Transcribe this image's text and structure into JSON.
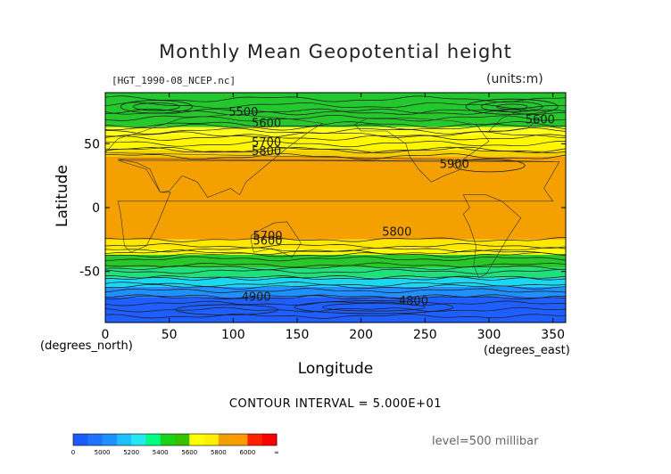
{
  "page": {
    "title": "Monthly Mean Geopotential height",
    "file": "[HGT_1990-08_NCEP.nc]",
    "units": "(units:m)",
    "ylabel": "Latitude",
    "xlabel": "Longitude",
    "xunit_left": "(degrees_north)",
    "xunit_right": "(degrees_east)",
    "interval": "CONTOUR INTERVAL = 5.000E+01",
    "level": "level=500 millibar"
  },
  "chart_data": {
    "type": "heatmap",
    "title": "Monthly Mean Geopotential height",
    "xlabel": "Longitude",
    "ylabel": "Latitude",
    "xlim": [
      0,
      360
    ],
    "ylim": [
      -90,
      90
    ],
    "xticks": [
      0,
      50,
      100,
      150,
      200,
      250,
      300,
      350
    ],
    "yticks": [
      50,
      0,
      -50
    ],
    "contour_interval": 50,
    "colorbar": {
      "tick_labels": [
        "0",
        "5000",
        "5200",
        "5400",
        "5600",
        "5800",
        "6000",
        "∞"
      ],
      "colors": [
        "#1e5bff",
        "#1f73ff",
        "#1e90ff",
        "#1fbfff",
        "#25e6f2",
        "#00ff80",
        "#19d219",
        "#36c000",
        "#ffff00",
        "#ffef00",
        "#f0a000",
        "#ff9a00",
        "#ff2200",
        "#ff0000"
      ]
    },
    "bands": [
      {
        "lat_top": 90,
        "lat_bottom": 75,
        "color": "#22c82e",
        "label": "5500"
      },
      {
        "lat_top": 75,
        "lat_bottom": 63,
        "color": "#27c82b"
      },
      {
        "lat_top": 63,
        "lat_bottom": 57,
        "color": "#ffff1a",
        "label": "5600"
      },
      {
        "lat_top": 57,
        "lat_bottom": 45,
        "color": "#fff700",
        "label": "5700"
      },
      {
        "lat_top": 45,
        "lat_bottom": 40,
        "color": "#f5d000",
        "label": "5800"
      },
      {
        "lat_top": 40,
        "lat_bottom": -25,
        "color": "#f4a000",
        "label": "5900"
      },
      {
        "lat_top": -25,
        "lat_bottom": -33,
        "color": "#ffe800",
        "label": "5800"
      },
      {
        "lat_top": -33,
        "lat_bottom": -37,
        "color": "#ffff00",
        "label": "5700"
      },
      {
        "lat_top": -37,
        "lat_bottom": -47,
        "color": "#28c828"
      },
      {
        "lat_top": -47,
        "lat_bottom": -55,
        "color": "#1fe07a"
      },
      {
        "lat_top": -55,
        "lat_bottom": -62,
        "color": "#1ad8f0"
      },
      {
        "lat_top": -62,
        "lat_bottom": -70,
        "color": "#1e90ff"
      },
      {
        "lat_top": -70,
        "lat_bottom": -90,
        "color": "#1f5fff",
        "label": "4900"
      }
    ],
    "contour_labels": [
      {
        "text": "5500",
        "lon": 108,
        "lat": 72
      },
      {
        "text": "5600",
        "lon": 126,
        "lat": 63
      },
      {
        "text": "5700",
        "lon": 126,
        "lat": 48
      },
      {
        "text": "5800",
        "lon": 126,
        "lat": 41
      },
      {
        "text": "5900",
        "lon": 273,
        "lat": 31
      },
      {
        "text": "5600",
        "lon": 340,
        "lat": 66
      },
      {
        "text": "5800",
        "lon": 228,
        "lat": -22
      },
      {
        "text": "5700",
        "lon": 127,
        "lat": -25
      },
      {
        "text": "5600",
        "lon": 127,
        "lat": -29
      },
      {
        "text": "4900",
        "lon": 118,
        "lat": -73
      },
      {
        "text": "4800",
        "lon": 241,
        "lat": -76
      }
    ]
  }
}
